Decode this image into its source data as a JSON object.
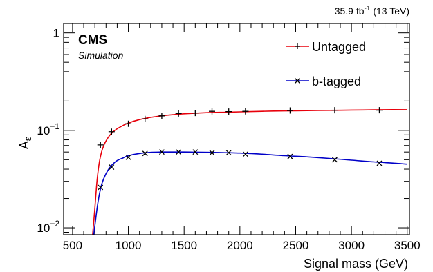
{
  "chart_data": {
    "type": "line",
    "title": "",
    "header_right": {
      "lumi": "35.9 fb",
      "lumi_exp": "-1",
      "energy": " (13 TeV)"
    },
    "experiment": "CMS",
    "sublabel": "Simulation",
    "xlabel": "Signal mass (GeV)",
    "ylabel": {
      "base": "A",
      "sub": "ε"
    },
    "xlim": [
      420,
      3520
    ],
    "ylim": [
      0.0085,
      1.25
    ],
    "yscale": "log",
    "xticks": [
      500,
      1000,
      1500,
      2000,
      2500,
      3000,
      3500
    ],
    "xtick_labels": [
      "500",
      "1000",
      "1500",
      "2000",
      "2500",
      "3000",
      "3500"
    ],
    "yticks": [
      {
        "value": 0.01,
        "base": "10",
        "exp": "−2"
      },
      {
        "value": 0.1,
        "base": "10",
        "exp": "−1"
      },
      {
        "value": 1,
        "base": "1",
        "exp": ""
      }
    ],
    "legend_position": "top-right",
    "series": [
      {
        "name": "Untagged",
        "color": "#e8000b",
        "marker": "plus",
        "points_x": [
          750,
          850,
          1000,
          1150,
          1300,
          1450,
          1600,
          1750,
          1900,
          2050,
          2450,
          2850,
          3250
        ],
        "points_y": [
          0.071,
          0.097,
          0.117,
          0.131,
          0.141,
          0.149,
          0.151,
          0.157,
          0.156,
          0.157,
          0.16,
          0.161,
          0.161
        ],
        "curve_x": [
          680,
          700,
          720,
          740,
          760,
          780,
          800,
          830,
          860,
          900,
          950,
          1000,
          1100,
          1200,
          1300,
          1400,
          1500,
          1700,
          1900,
          2100,
          2300,
          2500,
          2700,
          2900,
          3100,
          3300,
          3500
        ],
        "curve_y": [
          0.0085,
          0.016,
          0.031,
          0.047,
          0.06,
          0.07,
          0.078,
          0.088,
          0.096,
          0.104,
          0.112,
          0.119,
          0.129,
          0.136,
          0.141,
          0.145,
          0.148,
          0.152,
          0.154,
          0.156,
          0.158,
          0.159,
          0.16,
          0.161,
          0.162,
          0.163,
          0.163
        ]
      },
      {
        "name": "b-tagged",
        "color": "#0000c8",
        "marker": "cross",
        "points_x": [
          750,
          850,
          1000,
          1150,
          1300,
          1450,
          1600,
          1750,
          1900,
          2050,
          2450,
          2850,
          3250
        ],
        "points_y": [
          0.026,
          0.042,
          0.053,
          0.058,
          0.06,
          0.06,
          0.06,
          0.059,
          0.059,
          0.057,
          0.054,
          0.05,
          0.046
        ],
        "curve_x": [
          690,
          710,
          730,
          750,
          770,
          800,
          830,
          860,
          900,
          950,
          1000,
          1100,
          1200,
          1300,
          1400,
          1500,
          1600,
          1800,
          2000,
          2200,
          2400,
          2600,
          2800,
          3000,
          3200,
          3400,
          3500
        ],
        "curve_y": [
          0.0085,
          0.013,
          0.019,
          0.025,
          0.03,
          0.036,
          0.041,
          0.045,
          0.049,
          0.052,
          0.055,
          0.058,
          0.0595,
          0.06,
          0.06,
          0.06,
          0.0598,
          0.0593,
          0.0585,
          0.057,
          0.055,
          0.0535,
          0.0515,
          0.0495,
          0.0475,
          0.046,
          0.045
        ]
      }
    ]
  }
}
